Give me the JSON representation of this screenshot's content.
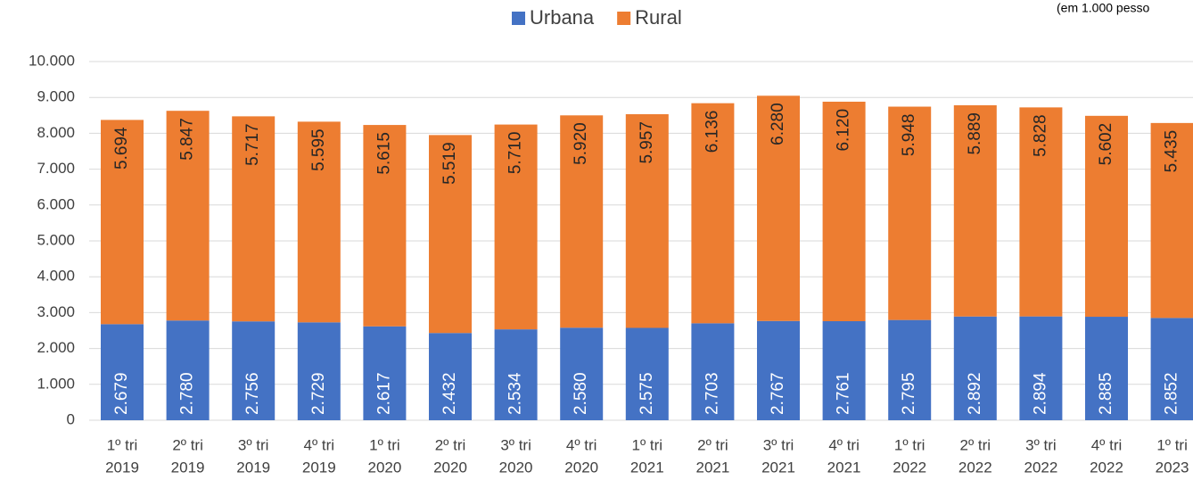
{
  "chart_data": {
    "type": "stacked_bar",
    "annotation": "(em 1.000 pesso",
    "categories": [
      [
        "1º tri",
        "2019"
      ],
      [
        "2º tri",
        "2019"
      ],
      [
        "3º tri",
        "2019"
      ],
      [
        "4º tri",
        "2019"
      ],
      [
        "1º tri",
        "2020"
      ],
      [
        "2º tri",
        "2020"
      ],
      [
        "3º tri",
        "2020"
      ],
      [
        "4º tri",
        "2020"
      ],
      [
        "1º tri",
        "2021"
      ],
      [
        "2º tri",
        "2021"
      ],
      [
        "3º tri",
        "2021"
      ],
      [
        "4º tri",
        "2021"
      ],
      [
        "1º tri",
        "2022"
      ],
      [
        "2º tri",
        "2022"
      ],
      [
        "3º tri",
        "2022"
      ],
      [
        "4º tri",
        "2022"
      ],
      [
        "1º tri",
        "2023"
      ]
    ],
    "series": [
      {
        "name": "Urbana",
        "color": "#4472c4",
        "values": [
          2679,
          2780,
          2756,
          2729,
          2617,
          2432,
          2534,
          2580,
          2575,
          2703,
          2767,
          2761,
          2795,
          2892,
          2894,
          2885,
          2852
        ],
        "value_labels": [
          "2.679",
          "2.780",
          "2.756",
          "2.729",
          "2.617",
          "2.432",
          "2.534",
          "2.580",
          "2.575",
          "2.703",
          "2.767",
          "2.761",
          "2.795",
          "2.892",
          "2.894",
          "2.885",
          "2.852"
        ]
      },
      {
        "name": "Rural",
        "color": "#ed7d31",
        "values": [
          5694,
          5847,
          5717,
          5595,
          5615,
          5519,
          5710,
          5920,
          5957,
          6136,
          6280,
          6120,
          5948,
          5889,
          5828,
          5602,
          5435
        ],
        "value_labels": [
          "5.694",
          "5.847",
          "5.717",
          "5.595",
          "5.615",
          "5.519",
          "5.710",
          "5.920",
          "5.957",
          "6.136",
          "6.280",
          "6.120",
          "5.948",
          "5.889",
          "5.828",
          "5.602",
          "5.435"
        ]
      }
    ],
    "ylim": [
      0,
      10000
    ],
    "yticks": [
      0,
      {
        "value": 1000,
        "label": "1.000"
      },
      {
        "value": 2000,
        "label": "2.000"
      },
      {
        "value": 3000,
        "label": "3.000"
      },
      {
        "value": 4000,
        "label": "4.000"
      },
      {
        "value": 5000,
        "label": "5.000"
      },
      {
        "value": 6000,
        "label": "6.000"
      },
      {
        "value": 7000,
        "label": "7.000"
      },
      {
        "value": 8000,
        "label": "8.000"
      },
      {
        "value": 9000,
        "label": "9.000"
      },
      {
        "value": 10000,
        "label": "10.000"
      }
    ],
    "grid": true,
    "legend": "top"
  }
}
